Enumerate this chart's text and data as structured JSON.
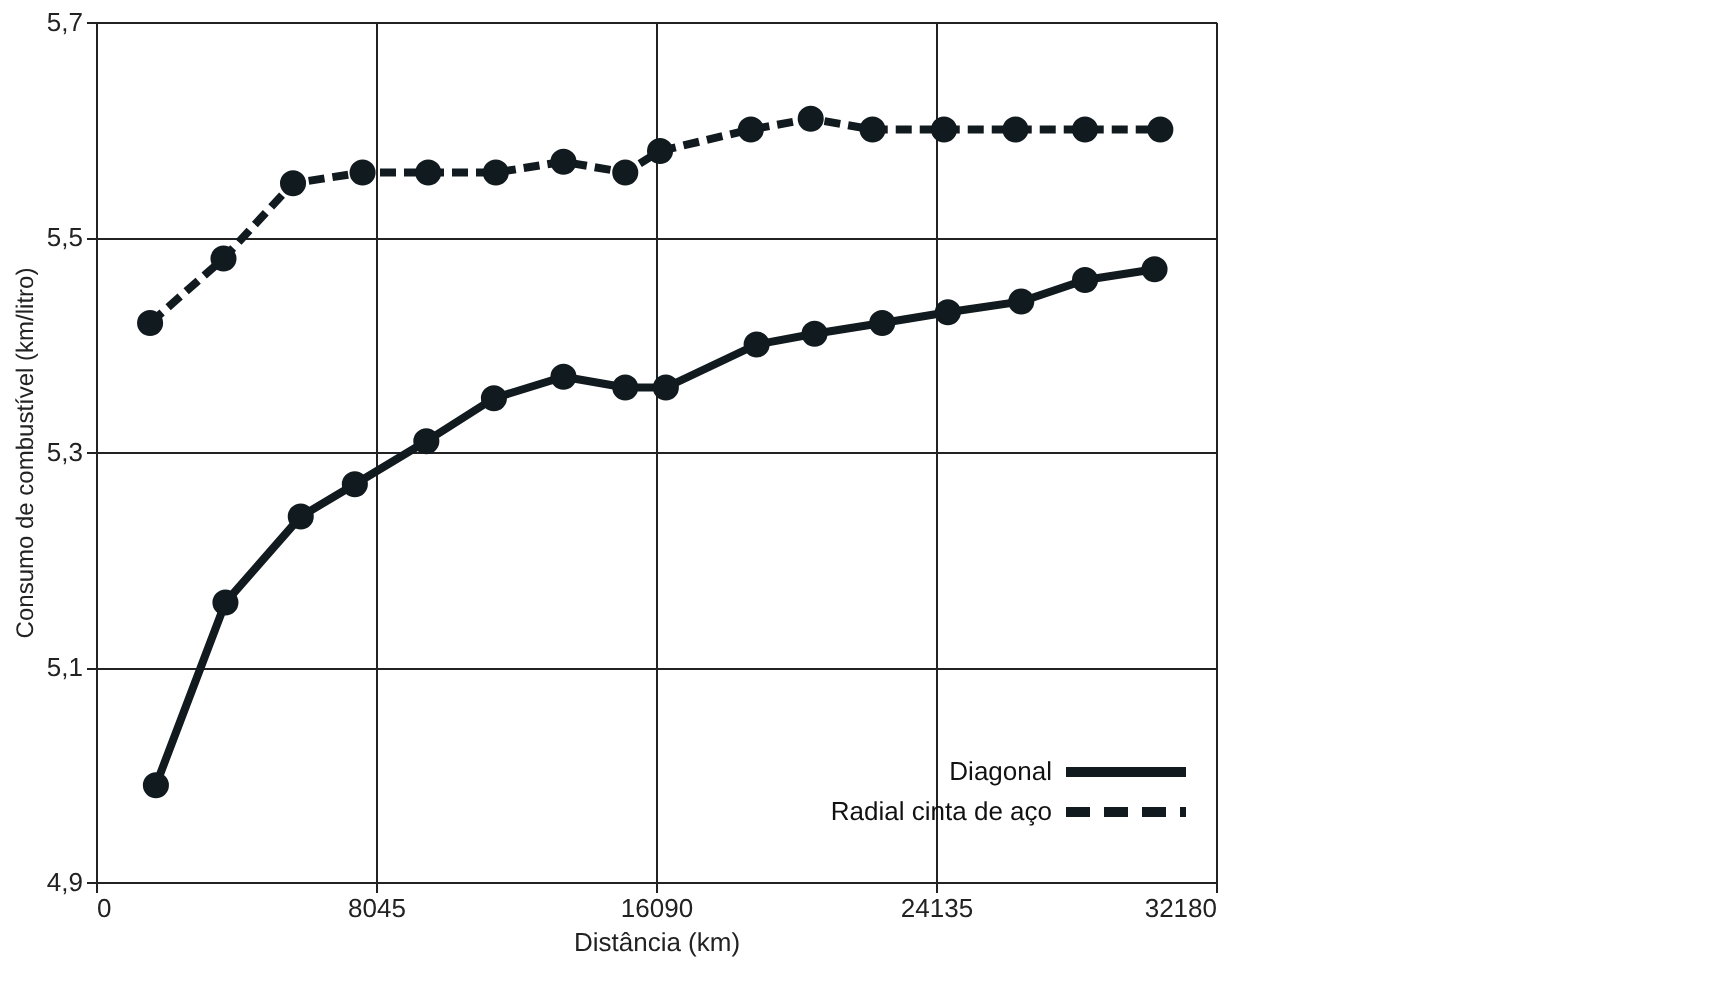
{
  "chart_data": {
    "type": "line",
    "xlabel": "Distância (km)",
    "ylabel": "Consumo de combustível (km/litro)",
    "series": [
      {
        "name": "Diagonal",
        "color": "#111a1f",
        "line_style": "solid",
        "x": [
          1721,
          3719,
          5883,
          7437,
          9491,
          11433,
          13431,
          15207,
          16373,
          18981,
          20646,
          22589,
          24476,
          26585,
          28416,
          30414
        ],
        "values": [
          4.99,
          5.16,
          5.24,
          5.27,
          5.31,
          5.35,
          5.37,
          5.36,
          5.36,
          5.4,
          5.41,
          5.42,
          5.43,
          5.44,
          5.46,
          5.47
        ]
      },
      {
        "name": "Radial cinta de aço",
        "color": "#111a1f",
        "line_style": "dashed",
        "x": [
          1554,
          3663,
          5661,
          7659,
          9546,
          11488,
          13431,
          15207,
          16206,
          18815,
          20535,
          22311,
          24365,
          26418,
          28416,
          30581
        ],
        "values": [
          5.42,
          5.48,
          5.55,
          5.56,
          5.56,
          5.56,
          5.57,
          5.56,
          5.58,
          5.6,
          5.61,
          5.6,
          5.6,
          5.6,
          5.6,
          5.6
        ]
      }
    ],
    "xlim": [
      0,
      32180
    ],
    "xticks": [
      0,
      8045,
      16090,
      24135,
      32180
    ],
    "ylim": [
      4.9,
      5.7
    ],
    "yticks": [
      {
        "value": 4.9,
        "label": "4,9"
      },
      {
        "value": 5.1,
        "label": "5,1"
      },
      {
        "value": 5.3,
        "label": "5,3"
      },
      {
        "value": 5.5,
        "label": "5,5"
      },
      {
        "value": 5.7,
        "label": "5,7"
      }
    ],
    "grid": true,
    "legend": "bottom right",
    "marker": "circle"
  }
}
